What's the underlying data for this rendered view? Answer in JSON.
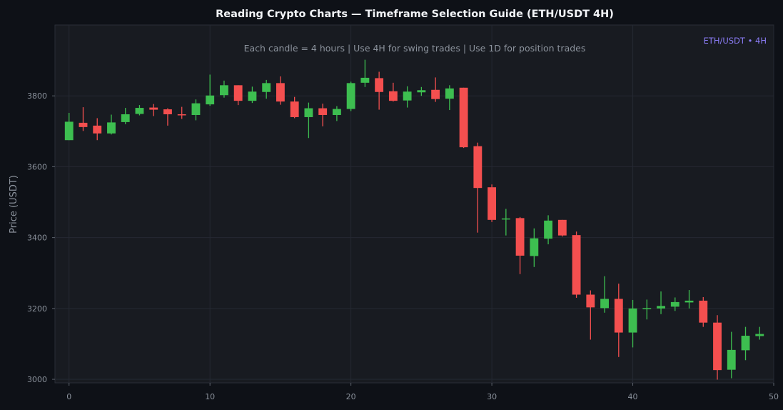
{
  "chart_data": {
    "type": "candlestick",
    "title": "Reading Crypto Charts — Timeframe Selection Guide (ETH/USDT 4H)",
    "subtitle": "Each candle = 4 hours | Use 4H for swing trades | Use 1D for position trades",
    "badge": "ETH/USDT • 4H",
    "xlabel": "",
    "ylabel": "Price (USDT)",
    "xlim": [
      -1,
      50
    ],
    "ylim": [
      2990,
      4000
    ],
    "xticks": [
      0,
      10,
      20,
      30,
      40,
      50
    ],
    "yticks": [
      3000,
      3200,
      3400,
      3600,
      3800
    ],
    "grid": true,
    "colors": {
      "up": "#3dbe50",
      "down": "#f44f4f",
      "badge": "#8b7cf6",
      "background": "#181b21",
      "page": "#0e1117",
      "grid": "#252932"
    },
    "candles": [
      {
        "x": 0,
        "open": 3675,
        "high": 3752,
        "low": 3675,
        "close": 3727
      },
      {
        "x": 1,
        "open": 3724,
        "high": 3768,
        "low": 3701,
        "close": 3712
      },
      {
        "x": 2,
        "open": 3716,
        "high": 3737,
        "low": 3675,
        "close": 3694
      },
      {
        "x": 3,
        "open": 3694,
        "high": 3747,
        "low": 3691,
        "close": 3725
      },
      {
        "x": 4,
        "open": 3726,
        "high": 3766,
        "low": 3720,
        "close": 3748
      },
      {
        "x": 5,
        "open": 3749,
        "high": 3774,
        "low": 3745,
        "close": 3766
      },
      {
        "x": 6,
        "open": 3767,
        "high": 3777,
        "low": 3743,
        "close": 3761
      },
      {
        "x": 7,
        "open": 3762,
        "high": 3765,
        "low": 3716,
        "close": 3748
      },
      {
        "x": 8,
        "open": 3748,
        "high": 3769,
        "low": 3735,
        "close": 3746
      },
      {
        "x": 9,
        "open": 3746,
        "high": 3790,
        "low": 3731,
        "close": 3779
      },
      {
        "x": 10,
        "open": 3776,
        "high": 3860,
        "low": 3772,
        "close": 3801
      },
      {
        "x": 11,
        "open": 3802,
        "high": 3843,
        "low": 3795,
        "close": 3830
      },
      {
        "x": 12,
        "open": 3830,
        "high": 3830,
        "low": 3774,
        "close": 3786
      },
      {
        "x": 13,
        "open": 3786,
        "high": 3826,
        "low": 3780,
        "close": 3812
      },
      {
        "x": 14,
        "open": 3811,
        "high": 3845,
        "low": 3792,
        "close": 3836
      },
      {
        "x": 15,
        "open": 3836,
        "high": 3855,
        "low": 3775,
        "close": 3784
      },
      {
        "x": 16,
        "open": 3784,
        "high": 3797,
        "low": 3737,
        "close": 3740
      },
      {
        "x": 17,
        "open": 3740,
        "high": 3781,
        "low": 3681,
        "close": 3765
      },
      {
        "x": 18,
        "open": 3765,
        "high": 3778,
        "low": 3714,
        "close": 3746
      },
      {
        "x": 19,
        "open": 3746,
        "high": 3771,
        "low": 3729,
        "close": 3763
      },
      {
        "x": 20,
        "open": 3763,
        "high": 3840,
        "low": 3757,
        "close": 3836
      },
      {
        "x": 21,
        "open": 3837,
        "high": 3902,
        "low": 3825,
        "close": 3851
      },
      {
        "x": 22,
        "open": 3850,
        "high": 3868,
        "low": 3761,
        "close": 3811
      },
      {
        "x": 23,
        "open": 3813,
        "high": 3837,
        "low": 3784,
        "close": 3786
      },
      {
        "x": 24,
        "open": 3787,
        "high": 3827,
        "low": 3767,
        "close": 3812
      },
      {
        "x": 25,
        "open": 3810,
        "high": 3825,
        "low": 3800,
        "close": 3816
      },
      {
        "x": 26,
        "open": 3817,
        "high": 3852,
        "low": 3783,
        "close": 3791
      },
      {
        "x": 27,
        "open": 3792,
        "high": 3830,
        "low": 3760,
        "close": 3821
      },
      {
        "x": 28,
        "open": 3823,
        "high": 3823,
        "low": 3653,
        "close": 3655
      },
      {
        "x": 29,
        "open": 3658,
        "high": 3668,
        "low": 3414,
        "close": 3540
      },
      {
        "x": 30,
        "open": 3542,
        "high": 3550,
        "low": 3444,
        "close": 3450
      },
      {
        "x": 31,
        "open": 3451,
        "high": 3481,
        "low": 3406,
        "close": 3454
      },
      {
        "x": 32,
        "open": 3455,
        "high": 3458,
        "low": 3297,
        "close": 3349
      },
      {
        "x": 33,
        "open": 3348,
        "high": 3426,
        "low": 3317,
        "close": 3398
      },
      {
        "x": 34,
        "open": 3397,
        "high": 3463,
        "low": 3381,
        "close": 3448
      },
      {
        "x": 35,
        "open": 3450,
        "high": 3450,
        "low": 3403,
        "close": 3406
      },
      {
        "x": 36,
        "open": 3407,
        "high": 3417,
        "low": 3230,
        "close": 3239
      },
      {
        "x": 37,
        "open": 3239,
        "high": 3251,
        "low": 3112,
        "close": 3203
      },
      {
        "x": 38,
        "open": 3201,
        "high": 3291,
        "low": 3188,
        "close": 3227
      },
      {
        "x": 39,
        "open": 3227,
        "high": 3270,
        "low": 3063,
        "close": 3132
      },
      {
        "x": 40,
        "open": 3132,
        "high": 3224,
        "low": 3090,
        "close": 3200
      },
      {
        "x": 41,
        "open": 3199,
        "high": 3225,
        "low": 3169,
        "close": 3201
      },
      {
        "x": 42,
        "open": 3200,
        "high": 3248,
        "low": 3184,
        "close": 3207
      },
      {
        "x": 43,
        "open": 3205,
        "high": 3231,
        "low": 3193,
        "close": 3218
      },
      {
        "x": 44,
        "open": 3217,
        "high": 3252,
        "low": 3200,
        "close": 3222
      },
      {
        "x": 45,
        "open": 3222,
        "high": 3232,
        "low": 3148,
        "close": 3160
      },
      {
        "x": 46,
        "open": 3160,
        "high": 3181,
        "low": 2999,
        "close": 3026
      },
      {
        "x": 47,
        "open": 3027,
        "high": 3134,
        "low": 3003,
        "close": 3083
      },
      {
        "x": 48,
        "open": 3082,
        "high": 3148,
        "low": 3054,
        "close": 3123
      },
      {
        "x": 49,
        "open": 3122,
        "high": 3148,
        "low": 3112,
        "close": 3128
      }
    ]
  }
}
